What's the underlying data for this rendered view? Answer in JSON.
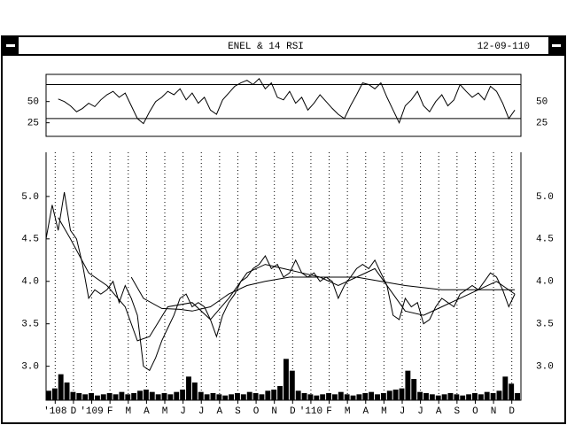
{
  "window": {
    "title": "ENEL & 14 RSI",
    "date": "12-09-110"
  },
  "chart_data": [
    {
      "type": "line",
      "color": "#000000",
      "x": [
        0,
        1,
        2,
        3,
        4,
        5,
        6,
        7,
        8,
        9,
        10,
        11,
        12,
        13,
        14,
        15,
        16,
        17,
        18,
        19,
        20,
        21,
        22,
        23,
        24,
        25,
        26,
        27,
        28,
        29,
        30,
        31,
        32,
        33,
        34,
        35,
        36,
        37,
        38,
        39,
        40,
        41,
        42,
        43,
        44,
        45,
        46,
        47,
        48,
        49,
        50,
        51,
        52,
        53,
        54,
        55,
        56,
        57,
        58,
        59,
        60,
        61,
        62,
        63,
        64,
        65,
        66,
        67,
        68,
        69,
        70,
        71,
        72,
        73,
        74,
        75,
        76,
        77
      ],
      "values": [
        null,
        null,
        53,
        50,
        45,
        38,
        42,
        48,
        44,
        52,
        58,
        62,
        55,
        60,
        45,
        30,
        24,
        38,
        50,
        55,
        62,
        58,
        65,
        52,
        60,
        48,
        55,
        40,
        35,
        52,
        60,
        68,
        72,
        75,
        70,
        77,
        65,
        72,
        55,
        52,
        62,
        48,
        55,
        40,
        48,
        58,
        50,
        42,
        35,
        30,
        45,
        58,
        72,
        70,
        65,
        72,
        55,
        40,
        25,
        45,
        52,
        62,
        45,
        38,
        50,
        58,
        45,
        52,
        70,
        62,
        55,
        60,
        52,
        68,
        62,
        48,
        30,
        40
      ],
      "xlim": [
        0,
        78
      ],
      "ylim": [
        9,
        82
      ],
      "yticks": [
        25,
        50
      ],
      "levels": [
        30,
        70
      ]
    },
    {
      "type": "line",
      "x": [
        0,
        1,
        2,
        3,
        4,
        5,
        6,
        7,
        8,
        9,
        10,
        11,
        12,
        13,
        14,
        15,
        16,
        17,
        18,
        19,
        20,
        21,
        22,
        23,
        24,
        25,
        26,
        27,
        28,
        29,
        30,
        31,
        32,
        33,
        34,
        35,
        36,
        37,
        38,
        39,
        40,
        41,
        42,
        43,
        44,
        45,
        46,
        47,
        48,
        49,
        50,
        51,
        52,
        53,
        54,
        55,
        56,
        57,
        58,
        59,
        60,
        61,
        62,
        63,
        64,
        65,
        66,
        67,
        68,
        69,
        70,
        71,
        72,
        73,
        74,
        75,
        76,
        77
      ],
      "series": [
        {
          "color": "#000000",
          "values": [
            4.5,
            4.9,
            4.6,
            5.05,
            4.6,
            4.5,
            4.2,
            3.8,
            3.9,
            3.85,
            3.9,
            4.0,
            3.75,
            3.95,
            3.8,
            3.6,
            3.0,
            2.95,
            3.1,
            3.3,
            3.45,
            3.6,
            3.8,
            3.85,
            3.7,
            3.75,
            3.7,
            3.55,
            3.35,
            3.6,
            3.75,
            3.85,
            4.0,
            4.05,
            4.15,
            4.2,
            4.3,
            4.15,
            4.2,
            4.05,
            4.1,
            4.25,
            4.1,
            4.05,
            4.1,
            4.0,
            4.05,
            4.0,
            3.8,
            3.95,
            4.05,
            4.15,
            4.2,
            4.15,
            4.25,
            4.1,
            3.95,
            3.6,
            3.55,
            3.8,
            3.7,
            3.75,
            3.5,
            3.55,
            3.7,
            3.8,
            3.75,
            3.7,
            3.85,
            3.9,
            3.95,
            3.9,
            4.0,
            4.1,
            4.05,
            3.9,
            3.7,
            3.85
          ]
        },
        {
          "color": "#000000",
          "x": [
            2,
            4,
            7,
            10,
            13,
            15,
            17,
            20,
            24,
            27,
            30,
            33,
            36,
            39,
            42,
            45,
            48,
            51,
            54,
            57,
            59,
            62,
            65,
            68,
            71,
            74,
            77
          ],
          "values": [
            4.75,
            4.5,
            4.1,
            3.95,
            3.7,
            3.3,
            3.35,
            3.7,
            3.75,
            3.55,
            3.8,
            4.1,
            4.2,
            4.15,
            4.1,
            4.05,
            3.95,
            4.05,
            4.15,
            3.85,
            3.65,
            3.6,
            3.7,
            3.8,
            3.9,
            4.0,
            3.85
          ]
        },
        {
          "color": "#000000",
          "x": [
            14,
            16,
            19,
            22,
            24,
            27,
            30,
            33,
            36,
            40,
            45,
            51,
            55,
            59,
            65,
            71,
            77
          ],
          "values": [
            4.05,
            3.8,
            3.68,
            3.67,
            3.65,
            3.7,
            3.85,
            3.95,
            4.0,
            4.05,
            4.05,
            4.05,
            4.0,
            3.95,
            3.9,
            3.9,
            3.9
          ]
        }
      ],
      "volume": [
        8,
        10,
        22,
        15,
        7,
        6,
        5,
        6,
        4,
        5,
        6,
        5,
        7,
        5,
        6,
        8,
        9,
        7,
        5,
        6,
        5,
        7,
        9,
        20,
        15,
        7,
        5,
        6,
        5,
        4,
        5,
        6,
        5,
        7,
        6,
        5,
        8,
        9,
        12,
        35,
        25,
        8,
        6,
        5,
        4,
        5,
        6,
        5,
        7,
        5,
        4,
        5,
        6,
        7,
        5,
        6,
        8,
        9,
        10,
        25,
        18,
        7,
        6,
        5,
        4,
        5,
        6,
        5,
        4,
        5,
        6,
        5,
        7,
        6,
        8,
        20,
        14,
        6
      ],
      "vlim": [
        0,
        45
      ],
      "xlim": [
        0,
        78
      ],
      "ylim": [
        2.6,
        5.52
      ],
      "yticks": [
        {
          "value": 3.0,
          "label": "3.0"
        },
        {
          "value": 3.5,
          "label": "3.5"
        },
        {
          "value": 4.0,
          "label": "4.0"
        },
        {
          "value": 4.5,
          "label": "4.5"
        },
        {
          "value": 5.0,
          "label": "5.0"
        }
      ],
      "xticks": [
        {
          "value": 1.5,
          "label": "'108"
        },
        {
          "value": 4.5,
          "label": "D"
        },
        {
          "value": 7.5,
          "label": "'109"
        },
        {
          "value": 10.5,
          "label": "F"
        },
        {
          "value": 13.5,
          "label": "M"
        },
        {
          "value": 16.5,
          "label": "A"
        },
        {
          "value": 19.5,
          "label": "M"
        },
        {
          "value": 22.5,
          "label": "J"
        },
        {
          "value": 25.5,
          "label": "J"
        },
        {
          "value": 28.5,
          "label": "A"
        },
        {
          "value": 31.5,
          "label": "S"
        },
        {
          "value": 34.5,
          "label": "O"
        },
        {
          "value": 37.5,
          "label": "N"
        },
        {
          "value": 40.5,
          "label": "D"
        },
        {
          "value": 43.5,
          "label": "'110"
        },
        {
          "value": 46.5,
          "label": "F"
        },
        {
          "value": 49.5,
          "label": "M"
        },
        {
          "value": 52.5,
          "label": "A"
        },
        {
          "value": 55.5,
          "label": "M"
        },
        {
          "value": 58.5,
          "label": "J"
        },
        {
          "value": 61.5,
          "label": "J"
        },
        {
          "value": 64.5,
          "label": "A"
        },
        {
          "value": 67.5,
          "label": "S"
        },
        {
          "value": 70.5,
          "label": "O"
        },
        {
          "value": 73.5,
          "label": "N"
        },
        {
          "value": 76.5,
          "label": "D"
        }
      ],
      "grid": true
    }
  ]
}
